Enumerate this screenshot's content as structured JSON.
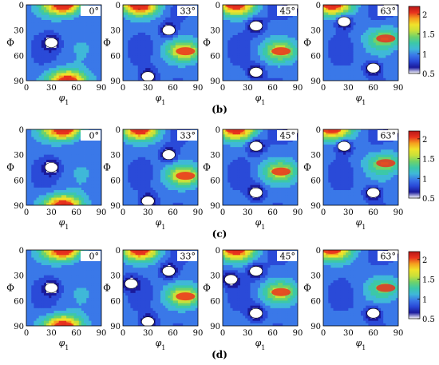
{
  "panel_labels": [
    "(b)",
    "(c)",
    "(d)"
  ],
  "axis_labels": {
    "x": "φ1",
    "y": "Φ"
  },
  "angle_labels": [
    "0°",
    "33°",
    "45°",
    "63°"
  ],
  "x_ticks": [
    "0",
    "30",
    "60",
    "90"
  ],
  "y_ticks": [
    "0",
    "30",
    "60",
    "90"
  ],
  "colorbar_ticks": [
    "0.5",
    "1",
    "1.5",
    "2"
  ],
  "colors": {
    "white_band": "#ffffff",
    "deep_blue": "#1a1a9c",
    "blue": "#2a4ad8",
    "light_blue": "#3a78e8",
    "cyan": "#3fb8d8",
    "teal": "#3cc8a8",
    "green": "#6ed26a",
    "yellow_green": "#c8e03a",
    "yellow": "#f0e22a",
    "orange": "#f5a01e",
    "red": "#e8321e",
    "dark_red": "#b81818"
  },
  "chart_data": [
    {
      "type": "heatmap",
      "title": "",
      "xlabel": "φ1",
      "ylabel": "Φ",
      "xlim": [
        0,
        90
      ],
      "ylim": [
        0,
        90
      ],
      "panels": [
        {
          "label": "(b)",
          "angle": "0°",
          "maxima": [
            {
              "x": 45,
              "y": 0,
              "v": 2.2
            },
            {
              "x": 50,
              "y": 90,
              "v": 2.1
            }
          ],
          "minima": [
            {
              "x": 30,
              "y": 45,
              "v": 0.5
            }
          ]
        },
        {
          "label": "(b)",
          "angle": "33°",
          "maxima": [
            {
              "x": 20,
              "y": 0,
              "v": 2.1
            },
            {
              "x": 75,
              "y": 55,
              "v": 1.6
            }
          ],
          "minima": [
            {
              "x": 55,
              "y": 30,
              "v": 0.5
            },
            {
              "x": 30,
              "y": 85,
              "v": 0.5
            }
          ]
        },
        {
          "label": "(b)",
          "angle": "45°",
          "maxima": [
            {
              "x": 15,
              "y": 0,
              "v": 2.0
            },
            {
              "x": 70,
              "y": 55,
              "v": 1.5
            }
          ],
          "minima": [
            {
              "x": 40,
              "y": 25,
              "v": 0.5
            },
            {
              "x": 40,
              "y": 80,
              "v": 0.5
            },
            {
              "x": 85,
              "y": 0,
              "v": 0.5
            }
          ]
        },
        {
          "label": "(b)",
          "angle": "63°",
          "maxima": [
            {
              "x": 10,
              "y": 0,
              "v": 2.0
            },
            {
              "x": 75,
              "y": 40,
              "v": 1.4
            }
          ],
          "minima": [
            {
              "x": 25,
              "y": 20,
              "v": 0.5
            },
            {
              "x": 60,
              "y": 75,
              "v": 0.5
            },
            {
              "x": 80,
              "y": 0,
              "v": 0.5
            }
          ]
        }
      ]
    },
    {
      "type": "heatmap",
      "title": "",
      "xlabel": "φ1",
      "ylabel": "Φ",
      "xlim": [
        0,
        90
      ],
      "ylim": [
        0,
        90
      ],
      "panels": [
        {
          "label": "(c)",
          "angle": "0°",
          "maxima": [
            {
              "x": 45,
              "y": 0,
              "v": 2.2
            },
            {
              "x": 45,
              "y": 90,
              "v": 2.1
            }
          ],
          "minima": [
            {
              "x": 30,
              "y": 45,
              "v": 0.5
            }
          ]
        },
        {
          "label": "(c)",
          "angle": "33°",
          "maxima": [
            {
              "x": 20,
              "y": 0,
              "v": 2.0
            },
            {
              "x": 75,
              "y": 55,
              "v": 1.6
            }
          ],
          "minima": [
            {
              "x": 55,
              "y": 30,
              "v": 0.5
            },
            {
              "x": 30,
              "y": 85,
              "v": 0.5
            }
          ]
        },
        {
          "label": "(c)",
          "angle": "45°",
          "maxima": [
            {
              "x": 15,
              "y": 0,
              "v": 2.0
            },
            {
              "x": 70,
              "y": 50,
              "v": 1.5
            }
          ],
          "minima": [
            {
              "x": 40,
              "y": 20,
              "v": 0.5
            },
            {
              "x": 40,
              "y": 75,
              "v": 0.5
            },
            {
              "x": 85,
              "y": 0,
              "v": 0.5
            }
          ]
        },
        {
          "label": "(c)",
          "angle": "63°",
          "maxima": [
            {
              "x": 10,
              "y": 0,
              "v": 1.9
            },
            {
              "x": 75,
              "y": 40,
              "v": 1.4
            }
          ],
          "minima": [
            {
              "x": 25,
              "y": 20,
              "v": 0.5
            },
            {
              "x": 60,
              "y": 75,
              "v": 0.5
            },
            {
              "x": 85,
              "y": 0,
              "v": 0.5
            }
          ]
        }
      ]
    },
    {
      "type": "heatmap",
      "title": "",
      "xlabel": "φ1",
      "ylabel": "Φ",
      "xlim": [
        0,
        90
      ],
      "ylim": [
        0,
        90
      ],
      "panels": [
        {
          "label": "(d)",
          "angle": "0°",
          "maxima": [
            {
              "x": 45,
              "y": 0,
              "v": 2.2
            },
            {
              "x": 45,
              "y": 90,
              "v": 2.1
            }
          ],
          "minima": [
            {
              "x": 30,
              "y": 45,
              "v": 0.5
            }
          ]
        },
        {
          "label": "(d)",
          "angle": "33°",
          "maxima": [
            {
              "x": 20,
              "y": 0,
              "v": 2.0
            },
            {
              "x": 75,
              "y": 55,
              "v": 1.6
            }
          ],
          "minima": [
            {
              "x": 55,
              "y": 25,
              "v": 0.5
            },
            {
              "x": 30,
              "y": 85,
              "v": 0.5
            },
            {
              "x": 10,
              "y": 40,
              "v": 0.5
            }
          ]
        },
        {
          "label": "(d)",
          "angle": "45°",
          "maxima": [
            {
              "x": 15,
              "y": 0,
              "v": 2.0
            },
            {
              "x": 70,
              "y": 50,
              "v": 1.5
            }
          ],
          "minima": [
            {
              "x": 40,
              "y": 25,
              "v": 0.5
            },
            {
              "x": 40,
              "y": 75,
              "v": 0.5
            },
            {
              "x": 10,
              "y": 35,
              "v": 0.5
            }
          ]
        },
        {
          "label": "(d)",
          "angle": "63°",
          "maxima": [
            {
              "x": 10,
              "y": 0,
              "v": 1.9
            },
            {
              "x": 75,
              "y": 45,
              "v": 1.3
            }
          ],
          "minima": [
            {
              "x": 60,
              "y": 75,
              "v": 0.5
            },
            {
              "x": 85,
              "y": 0,
              "v": 0.5
            }
          ]
        }
      ]
    }
  ],
  "colorbars": [
    {
      "vmin": 0.5,
      "vmax": 2.2,
      "ticks": [
        0.5,
        1,
        1.5,
        2
      ]
    },
    {
      "vmin": 0.5,
      "vmax": 2.2,
      "ticks": [
        0.5,
        1,
        1.5,
        2
      ]
    },
    {
      "vmin": 0.5,
      "vmax": 2.2,
      "ticks": [
        0.5,
        1,
        1.5,
        2
      ]
    }
  ]
}
